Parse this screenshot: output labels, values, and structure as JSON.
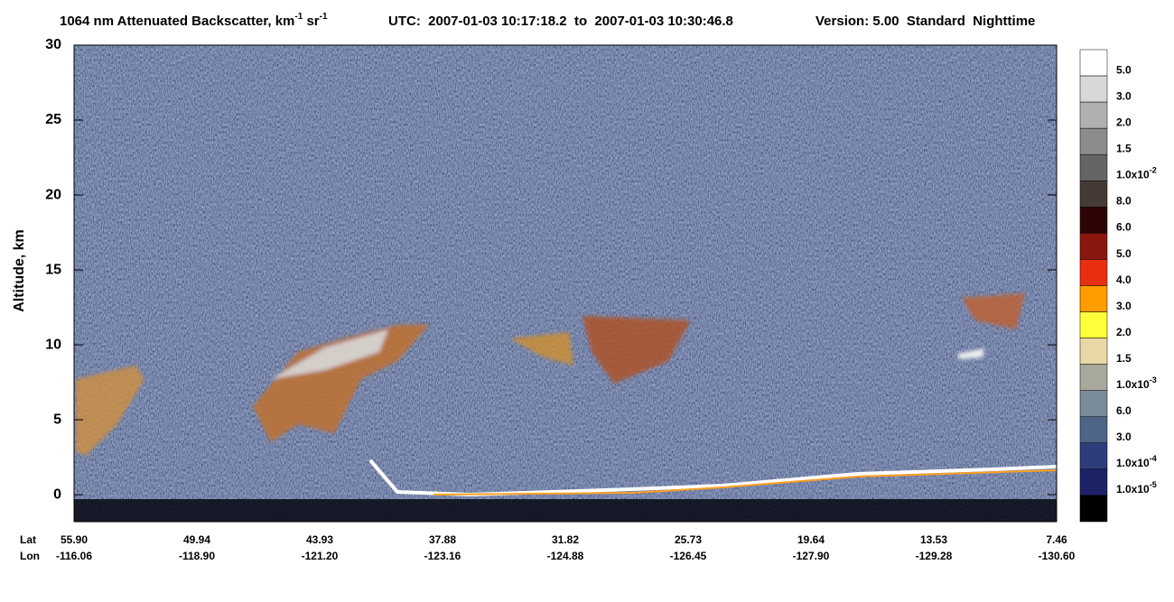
{
  "chart_data": {
    "type": "heatmap",
    "title": [
      "1064 nm Attenuated Backscatter, km",
      "-1",
      " sr",
      "-1"
    ],
    "subtitle": "UTC:  2007-01-03 10:17:18.2  to  2007-01-03 10:30:46.8",
    "version": "Version: 5.00  Standard  Nighttime",
    "ylabel": "Altitude, km",
    "ylim": [
      -1.8,
      30
    ],
    "yticks": [
      0,
      5,
      10,
      15,
      20,
      25,
      30
    ],
    "x_rows": [
      {
        "name": "Lat",
        "labels": [
          "55.90",
          "49.94",
          "43.93",
          "37.88",
          "31.82",
          "25.73",
          "19.64",
          "13.53",
          "7.46"
        ]
      },
      {
        "name": "Lon",
        "labels": [
          "-116.06",
          "-118.90",
          "-121.20",
          "-123.16",
          "-124.88",
          "-126.45",
          "-127.90",
          "-129.28",
          "-130.60"
        ]
      }
    ],
    "colorbar": {
      "colors": [
        "#ffffff",
        "#d8d8d8",
        "#b0b0b0",
        "#8c8c8c",
        "#646464",
        "#463a36",
        "#2e0404",
        "#8a1810",
        "#e83010",
        "#ff9c00",
        "#ffff3c",
        "#e8d8a8",
        "#a8a89c",
        "#7a8c9c",
        "#4e6488",
        "#2e3c7c",
        "#1e2266",
        "#000000"
      ],
      "labels": [
        "5.0",
        "3.0",
        "2.0",
        "1.5",
        [
          "1.0x10",
          "-2"
        ],
        "8.0",
        "6.0",
        "5.0",
        "4.0",
        "3.0",
        "2.0",
        "1.5",
        [
          "1.0x10",
          "-3"
        ],
        "6.0",
        "3.0",
        [
          "1.0x10",
          "-4"
        ],
        [
          "1.0x10",
          "-5"
        ]
      ]
    }
  }
}
